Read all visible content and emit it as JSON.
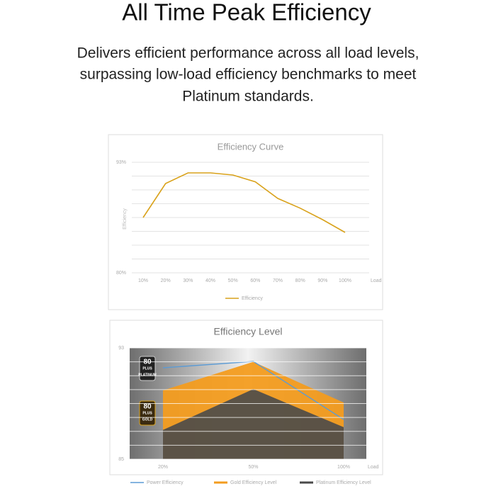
{
  "header": {
    "title": "All Time Peak Efficiency",
    "subtitle": [
      "Delivers efficient performance across all load levels,",
      "surpassing low-load efficiency benchmarks to meet",
      "Platinum standards."
    ]
  },
  "chart_data": [
    {
      "type": "line",
      "title": "Efficiency Curve",
      "x_label": "Load",
      "y_label": "Efficiency",
      "categories": [
        "10%",
        "20%",
        "30%",
        "40%",
        "50%",
        "60%",
        "70%",
        "80%",
        "90%",
        "100%"
      ],
      "series": [
        {
          "name": "Efficiency",
          "color": "#d9a21b",
          "values": [
            86.5,
            90.5,
            91.75,
            91.75,
            91.5,
            90.7,
            88.75,
            87.6,
            86.25,
            84.75
          ]
        }
      ],
      "ylim": [
        80,
        93
      ],
      "yticks": [
        {
          "value": 80,
          "label": "80%"
        },
        {
          "value": 93,
          "label": "93%"
        }
      ],
      "grid": true
    },
    {
      "type": "area",
      "title": "Efficiency Level",
      "x_label": "Load",
      "categories": [
        "20%",
        "50%",
        "100%"
      ],
      "series": [
        {
          "name": "Power Efficiency",
          "color": "#5b9bd5",
          "values": [
            91.57,
            92.03,
            87.85
          ]
        },
        {
          "name": "Gold Efficiency Level",
          "color": "#f39c1f",
          "values": [
            89.94,
            92.0,
            89.07
          ]
        },
        {
          "name": "Platinum Efficiency Level",
          "color": "#4a4a4a",
          "values": [
            87.1,
            90.04,
            87.3
          ]
        }
      ],
      "ylim": [
        85,
        93
      ],
      "yticks": [
        85,
        93
      ],
      "grid": true,
      "badges": [
        {
          "lines": [
            "80",
            "PLUS",
            "PLATINUM"
          ]
        },
        {
          "lines": [
            "80",
            "PLUS",
            "GOLD"
          ]
        }
      ]
    }
  ]
}
